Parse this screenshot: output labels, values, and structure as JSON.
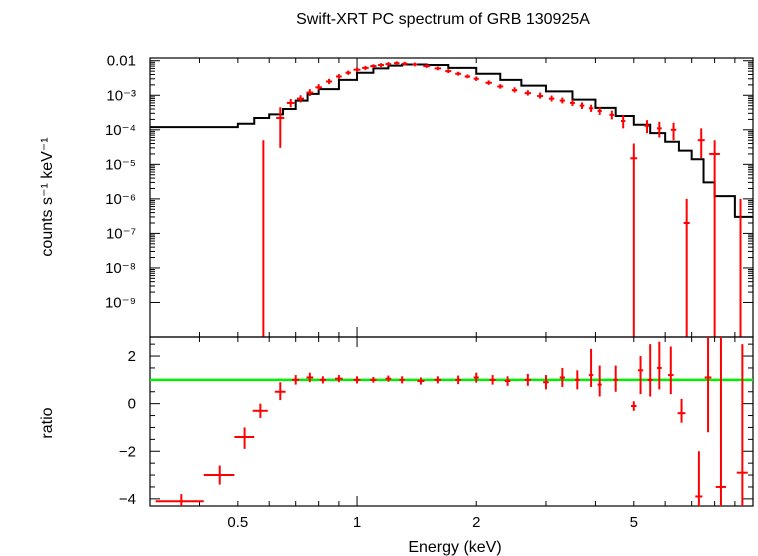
{
  "chart_data": [
    {
      "panel": "spectrum",
      "type": "scatter",
      "title": "Swift-XRT PC spectrum of GRB 130925A",
      "ylabel": "counts s⁻¹ keV⁻¹",
      "xlabel": "",
      "xscale": "log",
      "yscale": "log",
      "xlim": [
        0.3,
        10
      ],
      "ylim": [
        1e-10,
        0.012
      ],
      "y_tick_labels": [
        "0.01",
        "10⁻³",
        "10⁻⁴",
        "10⁻⁵",
        "10⁻⁶",
        "10⁻⁷",
        "10⁻⁸",
        "10⁻⁹"
      ],
      "series": [
        {
          "role": "data",
          "color": "#ff0000",
          "x": [
            0.58,
            0.64,
            0.68,
            0.72,
            0.76,
            0.8,
            0.85,
            0.9,
            0.95,
            1.0,
            1.05,
            1.1,
            1.15,
            1.2,
            1.26,
            1.32,
            1.4,
            1.5,
            1.6,
            1.7,
            1.8,
            1.9,
            2.0,
            2.15,
            2.3,
            2.5,
            2.7,
            2.9,
            3.1,
            3.3,
            3.5,
            3.7,
            3.9,
            4.1,
            4.4,
            4.7,
            5.0,
            5.4,
            5.8,
            6.3,
            6.8,
            7.4,
            8.0,
            9.3
          ],
          "y": [
            1e-10,
            0.00022,
            0.0006,
            0.0008,
            0.0012,
            0.0017,
            0.0025,
            0.0035,
            0.0045,
            0.0055,
            0.0062,
            0.007,
            0.0075,
            0.008,
            0.0085,
            0.0082,
            0.0078,
            0.007,
            0.006,
            0.005,
            0.0042,
            0.0035,
            0.003,
            0.0023,
            0.0018,
            0.0014,
            0.00115,
            0.00095,
            0.0008,
            0.0007,
            0.0006,
            0.0005,
            0.00042,
            0.00035,
            0.00027,
            0.00018,
            1.5e-05,
            0.00013,
            0.00011,
            0.0001,
            2e-07,
            5e-05,
            2e-05,
            1e-10
          ],
          "xerr": [
            0.015,
            0.015,
            0.015,
            0.015,
            0.015,
            0.015,
            0.015,
            0.015,
            0.015,
            0.02,
            0.02,
            0.02,
            0.02,
            0.02,
            0.02,
            0.02,
            0.02,
            0.03,
            0.03,
            0.03,
            0.03,
            0.03,
            0.03,
            0.04,
            0.04,
            0.04,
            0.05,
            0.05,
            0.05,
            0.05,
            0.05,
            0.05,
            0.05,
            0.05,
            0.06,
            0.06,
            0.1,
            0.08,
            0.08,
            0.1,
            0.12,
            0.15,
            0.25,
            0.1
          ],
          "ylo": [
            1e-10,
            3e-05,
            0.00045,
            0.00062,
            0.00095,
            0.0014,
            0.0021,
            0.003,
            0.0039,
            0.0048,
            0.0054,
            0.0062,
            0.0066,
            0.0071,
            0.0076,
            0.0073,
            0.0069,
            0.0062,
            0.0053,
            0.0044,
            0.0037,
            0.0031,
            0.0026,
            0.002,
            0.00155,
            0.0012,
            0.00098,
            0.0008,
            0.00066,
            0.00058,
            0.00049,
            0.0004,
            0.00033,
            0.00027,
            0.0002,
            0.00011,
            1e-10,
            8e-05,
            6e-05,
            5e-05,
            1e-10,
            1.5e-05,
            1e-10,
            1e-10
          ],
          "yhi": [
            5e-05,
            0.00045,
            0.00078,
            0.001,
            0.0015,
            0.0021,
            0.003,
            0.0041,
            0.0052,
            0.0063,
            0.0071,
            0.0079,
            0.0085,
            0.0091,
            0.0096,
            0.0093,
            0.0088,
            0.0079,
            0.0068,
            0.0057,
            0.0048,
            0.004,
            0.0035,
            0.0027,
            0.0021,
            0.0017,
            0.0014,
            0.0012,
            0.00098,
            0.00086,
            0.00075,
            0.00062,
            0.00053,
            0.00045,
            0.00036,
            0.00027,
            4e-05,
            0.00019,
            0.00017,
            0.00016,
            1e-06,
            0.00011,
            5e-05,
            1e-06
          ]
        },
        {
          "role": "model",
          "color": "#000000",
          "step": true,
          "x": [
            0.3,
            0.45,
            0.5,
            0.55,
            0.6,
            0.65,
            0.7,
            0.75,
            0.8,
            0.9,
            1.0,
            1.1,
            1.2,
            1.3,
            1.5,
            1.7,
            2.0,
            2.3,
            2.6,
            3.0,
            3.5,
            4.0,
            4.5,
            5.0,
            5.5,
            6.0,
            6.5,
            7.0,
            7.5,
            8.0,
            9.0,
            10.0
          ],
          "y": [
            0.00012,
            0.00012,
            0.00015,
            0.00022,
            0.00028,
            0.0004,
            0.0007,
            0.0011,
            0.0015,
            0.0028,
            0.0045,
            0.006,
            0.0072,
            0.0078,
            0.0075,
            0.0062,
            0.0042,
            0.0028,
            0.0019,
            0.0013,
            0.00075,
            0.00043,
            0.00025,
            0.00014,
            8e-05,
            4.5e-05,
            2.5e-05,
            1.4e-05,
            3e-06,
            1.2e-06,
            3e-07,
            3e-07
          ]
        }
      ]
    },
    {
      "panel": "ratio",
      "type": "scatter",
      "xlabel": "Energy (keV)",
      "ylabel": "ratio",
      "xscale": "log",
      "xlim": [
        0.3,
        10
      ],
      "ylim": [
        -4.3,
        2.8
      ],
      "x_ticks": [
        0.5,
        1,
        2,
        5
      ],
      "x_tick_labels": [
        "0.5",
        "1",
        "2",
        "5"
      ],
      "y_ticks": [
        -4,
        -2,
        0,
        2
      ],
      "y_tick_labels": [
        "−4",
        "−2",
        "0",
        "2"
      ],
      "reference_line": {
        "y": 1,
        "color": "#00ee00"
      },
      "series": [
        {
          "role": "data",
          "color": "#ff0000",
          "x": [
            0.36,
            0.45,
            0.52,
            0.57,
            0.64,
            0.7,
            0.76,
            0.82,
            0.9,
            1.0,
            1.1,
            1.2,
            1.3,
            1.45,
            1.6,
            1.8,
            2.0,
            2.2,
            2.4,
            2.7,
            3.0,
            3.3,
            3.6,
            3.9,
            4.1,
            4.5,
            5.0,
            5.2,
            5.5,
            5.8,
            6.2,
            6.6,
            7.3,
            7.7,
            8.3,
            9.4
          ],
          "y": [
            -4.1,
            -3.0,
            -1.4,
            -0.3,
            0.5,
            1.0,
            1.1,
            1.0,
            1.05,
            1.0,
            1.0,
            1.05,
            1.0,
            0.95,
            1.0,
            1.0,
            1.1,
            1.0,
            0.95,
            1.0,
            0.9,
            1.1,
            1.0,
            1.2,
            0.8,
            1.0,
            -0.1,
            1.4,
            1.0,
            1.5,
            1.2,
            -0.4,
            -3.9,
            1.1,
            -3.5,
            -2.9
          ],
          "xerr": [
            0.05,
            0.04,
            0.03,
            0.025,
            0.02,
            0.015,
            0.015,
            0.015,
            0.02,
            0.02,
            0.02,
            0.02,
            0.02,
            0.03,
            0.03,
            0.03,
            0.03,
            0.04,
            0.04,
            0.05,
            0.05,
            0.05,
            0.05,
            0.05,
            0.05,
            0.06,
            0.08,
            0.08,
            0.08,
            0.08,
            0.1,
            0.15,
            0.15,
            0.15,
            0.25,
            0.3
          ],
          "ylo": [
            -4.3,
            -3.4,
            -1.9,
            -0.6,
            0.15,
            0.8,
            0.9,
            0.85,
            0.9,
            0.85,
            0.88,
            0.92,
            0.85,
            0.8,
            0.85,
            0.82,
            0.88,
            0.8,
            0.75,
            0.75,
            0.6,
            0.7,
            0.6,
            0.7,
            0.3,
            0.5,
            -0.3,
            0.4,
            0.3,
            0.6,
            0.4,
            -0.8,
            -4.3,
            -1.2,
            -4.3,
            -4.3
          ],
          "yhi": [
            -3.8,
            -2.6,
            -1.0,
            0.0,
            0.9,
            1.2,
            1.3,
            1.15,
            1.2,
            1.15,
            1.12,
            1.18,
            1.15,
            1.1,
            1.15,
            1.18,
            1.3,
            1.2,
            1.15,
            1.25,
            1.2,
            1.5,
            1.4,
            2.3,
            1.6,
            1.6,
            0.1,
            2.0,
            2.5,
            2.6,
            2.4,
            0.2,
            -2.0,
            2.8,
            2.8,
            2.5
          ]
        }
      ]
    }
  ]
}
